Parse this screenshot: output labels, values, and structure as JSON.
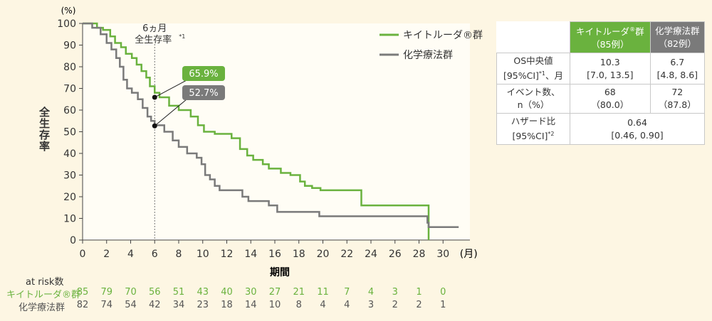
{
  "chart_data": {
    "type": "line",
    "y_unit": "(%)",
    "ylabel": "全生存率",
    "xlabel": "期間",
    "x_unit": "(月)",
    "xlim": [
      0,
      32
    ],
    "ylim": [
      0,
      100
    ],
    "x_ticks": [
      0,
      2,
      4,
      6,
      8,
      10,
      12,
      14,
      16,
      18,
      20,
      22,
      24,
      26,
      28,
      30
    ],
    "y_ticks": [
      0,
      10,
      20,
      30,
      40,
      50,
      60,
      70,
      80,
      90,
      100
    ],
    "reference_line": {
      "x": 6,
      "label_line1": "6ヵ月",
      "label_line2": "全生存率",
      "label_sup": "*1"
    },
    "series": [
      {
        "name": "キイトルーダ®群",
        "color": "#6ab23e",
        "steps": [
          [
            0,
            100
          ],
          [
            1.2,
            98
          ],
          [
            1.7,
            97
          ],
          [
            2.3,
            94
          ],
          [
            2.7,
            91
          ],
          [
            3.2,
            89
          ],
          [
            3.6,
            86
          ],
          [
            4.1,
            84
          ],
          [
            4.5,
            81
          ],
          [
            4.9,
            78
          ],
          [
            5.3,
            75
          ],
          [
            5.6,
            71
          ],
          [
            6.0,
            68
          ],
          [
            6.4,
            65.9
          ],
          [
            7.2,
            62
          ],
          [
            8.0,
            60
          ],
          [
            9.0,
            57
          ],
          [
            9.6,
            53
          ],
          [
            10.1,
            50
          ],
          [
            11.0,
            49
          ],
          [
            12.4,
            47
          ],
          [
            13.1,
            42
          ],
          [
            13.7,
            39
          ],
          [
            14.2,
            37
          ],
          [
            15.0,
            35
          ],
          [
            15.5,
            33
          ],
          [
            16.5,
            31
          ],
          [
            17.3,
            30
          ],
          [
            18.1,
            27
          ],
          [
            18.5,
            25
          ],
          [
            19.1,
            24
          ],
          [
            19.8,
            23
          ],
          [
            21.0,
            23
          ],
          [
            23.2,
            16
          ],
          [
            24.5,
            16
          ],
          [
            28.8,
            16
          ],
          [
            28.8,
            0
          ]
        ],
        "annotation": {
          "x": 6,
          "y": 65.9,
          "label": "65.9%"
        }
      },
      {
        "name": "化学療法群",
        "color": "#7a7a7a",
        "steps": [
          [
            0,
            100
          ],
          [
            0.8,
            98
          ],
          [
            1.5,
            95
          ],
          [
            2.0,
            91
          ],
          [
            2.4,
            88
          ],
          [
            2.8,
            84
          ],
          [
            3.1,
            80
          ],
          [
            3.4,
            74
          ],
          [
            3.7,
            70
          ],
          [
            4.1,
            68
          ],
          [
            4.6,
            65
          ],
          [
            5.0,
            61
          ],
          [
            5.4,
            57
          ],
          [
            5.7,
            55
          ],
          [
            6.0,
            53
          ],
          [
            6.8,
            50
          ],
          [
            7.5,
            46
          ],
          [
            8.0,
            43
          ],
          [
            8.7,
            40
          ],
          [
            9.5,
            38
          ],
          [
            9.9,
            35
          ],
          [
            10.2,
            30
          ],
          [
            10.6,
            28
          ],
          [
            11.0,
            25
          ],
          [
            11.4,
            23
          ],
          [
            12.6,
            23
          ],
          [
            13.3,
            20
          ],
          [
            13.8,
            18
          ],
          [
            15.5,
            16
          ],
          [
            16.2,
            13
          ],
          [
            19.7,
            11
          ],
          [
            20.6,
            11
          ],
          [
            28.7,
            11
          ],
          [
            28.7,
            8
          ],
          [
            28.8,
            6
          ],
          [
            31.3,
            6
          ]
        ],
        "annotation": {
          "x": 6,
          "y": 52.7,
          "label": "52.7%"
        }
      }
    ],
    "legend": {
      "position": "top-right"
    }
  },
  "stats_table": {
    "header_keytruda_line1": "キイトルーダ",
    "header_keytruda_reg": "®",
    "header_keytruda_line1_end": "群",
    "header_keytruda_line2": "（85例）",
    "header_chemo_line1": "化学療法群",
    "header_chemo_line2": "（82例）",
    "rows": [
      {
        "label_line1": "OS中央値",
        "label_line2": "[95%CI]",
        "label_sup": "*1",
        "label_tail": "、月",
        "k_line1": "10.3",
        "k_line2": "[7.0, 13.5]",
        "c_line1": "6.7",
        "c_line2": "[4.8, 8.6]"
      },
      {
        "label_line1": "イベント数、",
        "label_line2": "n（%）",
        "k_line1": "68",
        "k_line2": "（80.0）",
        "c_line1": "72",
        "c_line2": "（87.8）"
      }
    ],
    "hazard": {
      "label_line1": "ハザード比",
      "label_line2": "[95%CI]",
      "label_sup": "*2",
      "value_line1": "0.64",
      "value_line2": "[0.46, 0.90]"
    }
  },
  "at_risk": {
    "title": "at risk数",
    "keytruda_label": "キイトルーダ®群",
    "chemo_label": "化学療法群",
    "times": [
      0,
      2,
      4,
      6,
      8,
      10,
      12,
      14,
      16,
      18,
      20,
      22,
      24,
      26,
      28,
      30
    ],
    "keytruda": [
      85,
      79,
      70,
      56,
      51,
      43,
      40,
      30,
      27,
      21,
      11,
      7,
      4,
      3,
      1,
      0
    ],
    "chemo": [
      82,
      74,
      54,
      42,
      34,
      23,
      18,
      14,
      10,
      8,
      4,
      4,
      3,
      2,
      2,
      1
    ]
  }
}
